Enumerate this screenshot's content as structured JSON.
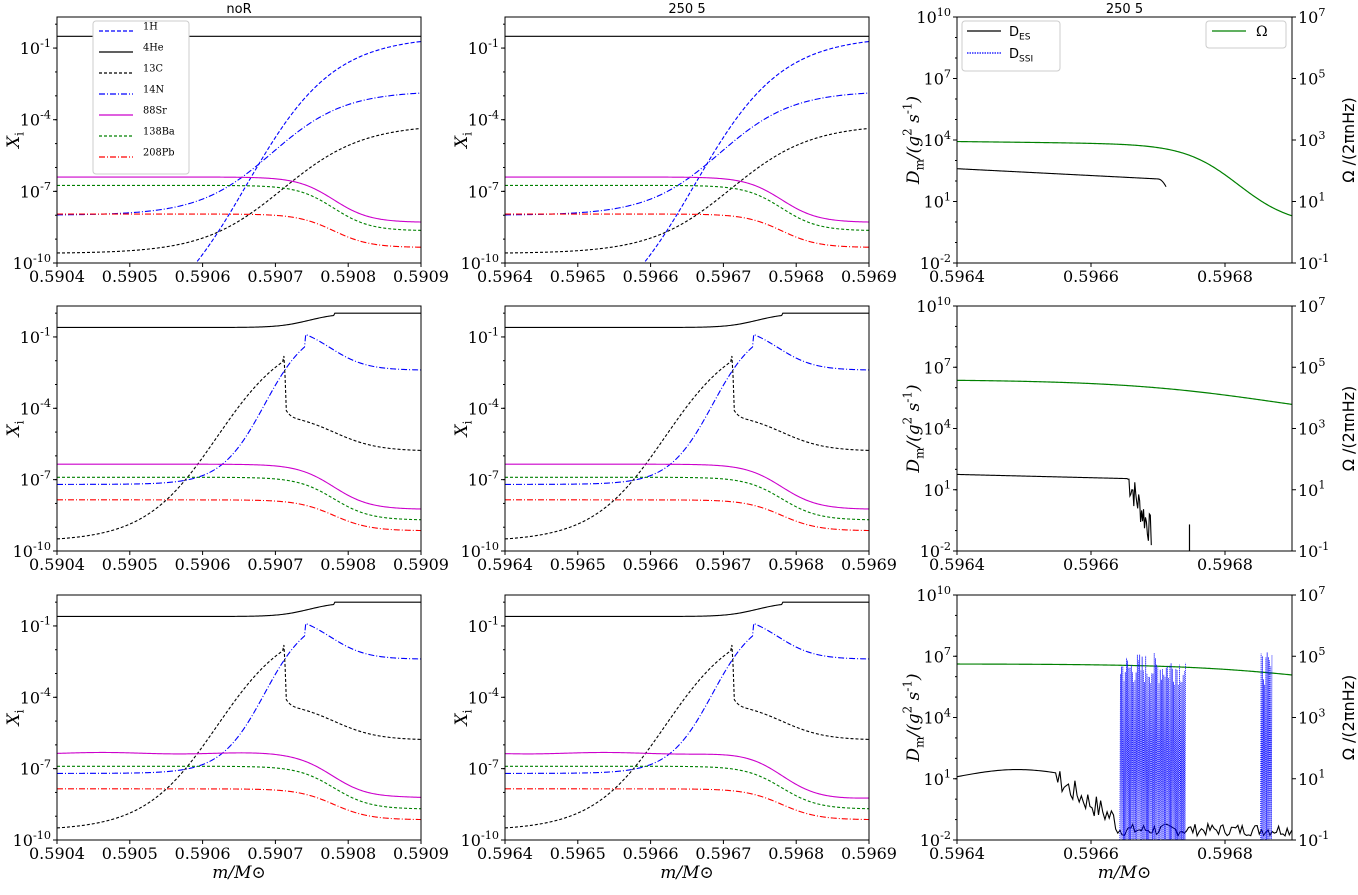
{
  "figure": {
    "xlabel_text": "m/M⊙",
    "colors": {
      "H1": "#0000ff",
      "He4": "#000000",
      "C13": "#000000",
      "N14": "#0000ff",
      "Sr88": "#cc00cc",
      "Ba138": "#008000",
      "Pb208": "#ff0000",
      "DES": "#000000",
      "DSSI": "#0000ff",
      "Omega": "#008000"
    }
  },
  "chart_data": [
    {
      "id": "r0c0",
      "type": "line",
      "title": "noR",
      "ylabel": "X_i",
      "yscale": "log",
      "xlim": [
        0.5904,
        0.5909
      ],
      "ylim": [
        1e-10,
        2
      ],
      "xticks": [
        "0.5904",
        "0.5905",
        "0.5906",
        "0.5907",
        "0.5908",
        "0.5909"
      ],
      "yticks": [
        "10^-10",
        "10^-7",
        "10^-4",
        "10^-1"
      ],
      "legend": {
        "position": "upper-left",
        "entries": [
          "1H",
          "4He",
          "13C",
          "14N",
          "88Sr",
          "138Ba",
          "208Pb"
        ]
      }
    },
    {
      "id": "r0c1",
      "type": "line",
      "title": "250 5",
      "ylabel": "X_i",
      "yscale": "log",
      "xlim": [
        0.5964,
        0.5969
      ],
      "ylim": [
        1e-10,
        2
      ],
      "xticks": [
        "0.5964",
        "0.5965",
        "0.5966",
        "0.5967",
        "0.5968",
        "0.5969"
      ],
      "yticks": [
        "10^-10",
        "10^-7",
        "10^-4",
        "10^-1"
      ]
    },
    {
      "id": "r0c2",
      "type": "line",
      "title": "250 5",
      "ylabel": "D_m/(g^2 s^-1)",
      "y2label": "Ω /(2πnHz)",
      "yscale": "log",
      "xlim": [
        0.5964,
        0.5969
      ],
      "ylim": [
        0.01,
        10000000000.0
      ],
      "y2lim": [
        0.1,
        10000000.0
      ],
      "xticks": [
        "0.5964",
        "0.5966",
        "0.5968"
      ],
      "yticks": [
        "10^-2",
        "10^1",
        "10^4",
        "10^7",
        "10^10"
      ],
      "y2ticks": [
        "10^-1",
        "10^1",
        "10^3",
        "10^5",
        "10^7"
      ],
      "legend": {
        "left_entries": [
          "D_ES",
          "D_SSI"
        ],
        "right_entries": [
          "Ω"
        ]
      }
    },
    {
      "id": "r1c0",
      "type": "line",
      "title": "",
      "ylabel": "X_i",
      "yscale": "log",
      "xlim": [
        0.5904,
        0.5909
      ],
      "ylim": [
        1e-10,
        2
      ],
      "xticks": [
        "0.5904",
        "0.5905",
        "0.5906",
        "0.5907",
        "0.5908",
        "0.5909"
      ],
      "yticks": [
        "10^-10",
        "10^-7",
        "10^-4",
        "10^-1"
      ]
    },
    {
      "id": "r1c1",
      "type": "line",
      "title": "",
      "ylabel": "X_i",
      "yscale": "log",
      "xlim": [
        0.5964,
        0.5969
      ],
      "ylim": [
        1e-10,
        2
      ],
      "xticks": [
        "0.5964",
        "0.5965",
        "0.5966",
        "0.5967",
        "0.5968",
        "0.5969"
      ],
      "yticks": [
        "10^-10",
        "10^-7",
        "10^-4",
        "10^-1"
      ]
    },
    {
      "id": "r1c2",
      "type": "line",
      "title": "",
      "ylabel": "D_m/(g^2 s^-1)",
      "y2label": "Ω /(2πnHz)",
      "yscale": "log",
      "xlim": [
        0.5964,
        0.5969
      ],
      "ylim": [
        0.01,
        10000000000.0
      ],
      "y2lim": [
        0.1,
        10000000.0
      ],
      "xticks": [
        "0.5964",
        "0.5966",
        "0.5968"
      ],
      "yticks": [
        "10^-2",
        "10^1",
        "10^4",
        "10^7",
        "10^10"
      ],
      "y2ticks": [
        "10^-1",
        "10^1",
        "10^3",
        "10^5",
        "10^7"
      ]
    },
    {
      "id": "r2c0",
      "type": "line",
      "title": "",
      "ylabel": "X_i",
      "xlabel": "m/M⊙",
      "yscale": "log",
      "xlim": [
        0.5904,
        0.5909
      ],
      "ylim": [
        1e-10,
        2
      ],
      "xticks": [
        "0.5904",
        "0.5905",
        "0.5906",
        "0.5907",
        "0.5908",
        "0.5909"
      ],
      "yticks": [
        "10^-10",
        "10^-7",
        "10^-4",
        "10^-1"
      ]
    },
    {
      "id": "r2c1",
      "type": "line",
      "title": "",
      "ylabel": "X_i",
      "xlabel": "m/M⊙",
      "yscale": "log",
      "xlim": [
        0.5964,
        0.5969
      ],
      "ylim": [
        1e-10,
        2
      ],
      "xticks": [
        "0.5964",
        "0.5965",
        "0.5966",
        "0.5967",
        "0.5968",
        "0.5969"
      ],
      "yticks": [
        "10^-10",
        "10^-7",
        "10^-4",
        "10^-1"
      ]
    },
    {
      "id": "r2c2",
      "type": "line",
      "title": "",
      "ylabel": "D_m/(g^2 s^-1)",
      "y2label": "Ω /(2πnHz)",
      "xlabel": "m/M⊙",
      "yscale": "log",
      "xlim": [
        0.5964,
        0.5969
      ],
      "ylim": [
        0.01,
        10000000000.0
      ],
      "y2lim": [
        0.1,
        10000000.0
      ],
      "xticks": [
        "0.5964",
        "0.5966",
        "0.5968"
      ],
      "yticks": [
        "10^-2",
        "10^1",
        "10^4",
        "10^7",
        "10^10"
      ],
      "y2ticks": [
        "10^-1",
        "10^1",
        "10^3",
        "10^5",
        "10^7"
      ]
    }
  ]
}
